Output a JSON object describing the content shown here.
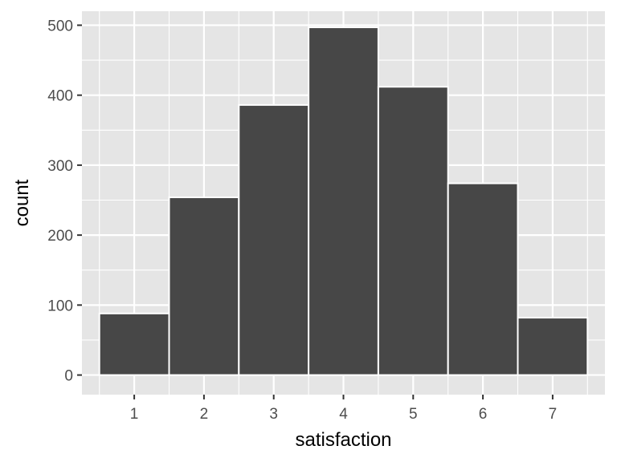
{
  "chart_data": {
    "type": "bar",
    "title": "",
    "xlabel": "satisfaction",
    "ylabel": "count",
    "categories": [
      "1",
      "2",
      "3",
      "4",
      "5",
      "6",
      "7"
    ],
    "values": [
      88,
      254,
      386,
      497,
      412,
      274,
      82
    ],
    "y_ticks": [
      "0",
      "100",
      "200",
      "300",
      "400",
      "500"
    ],
    "ylim": [
      -28,
      520
    ],
    "xlim": [
      0.25,
      7.75
    ],
    "grid": true,
    "legend": "none",
    "colors": {
      "panel_background": "#e5e5e5",
      "gridline": "#ffffff",
      "bar_fill": "#474747",
      "bar_outline": "#ffffff",
      "tick_mark": "#333333"
    }
  }
}
